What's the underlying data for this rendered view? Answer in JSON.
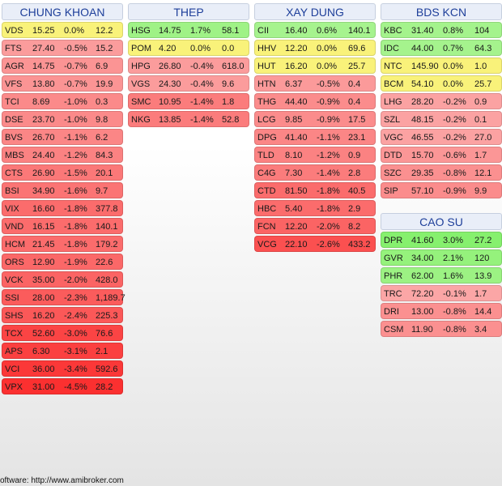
{
  "columns": [
    {
      "title": "CHUNG KHOAN",
      "rows": [
        {
          "sym": "VDS",
          "price": "15.25",
          "chg": "0.0%",
          "vol": "12.2",
          "color": "#f9f27a"
        },
        {
          "sym": "FTS",
          "price": "27.40",
          "chg": "-0.5%",
          "vol": "15.2",
          "color": "#fb9c9c"
        },
        {
          "sym": "AGR",
          "price": "14.75",
          "chg": "-0.7%",
          "vol": "6.9",
          "color": "#fb9494"
        },
        {
          "sym": "VFS",
          "price": "13.80",
          "chg": "-0.7%",
          "vol": "19.9",
          "color": "#fb9494"
        },
        {
          "sym": "TCI",
          "price": "8.69",
          "chg": "-1.0%",
          "vol": "0.3",
          "color": "#fb8a8a"
        },
        {
          "sym": "DSE",
          "price": "23.70",
          "chg": "-1.0%",
          "vol": "9.8",
          "color": "#fb8a8a"
        },
        {
          "sym": "BVS",
          "price": "26.70",
          "chg": "-1.1%",
          "vol": "6.2",
          "color": "#fb8686"
        },
        {
          "sym": "MBS",
          "price": "24.40",
          "chg": "-1.2%",
          "vol": "84.3",
          "color": "#fb8282"
        },
        {
          "sym": "CTS",
          "price": "26.90",
          "chg": "-1.5%",
          "vol": "20.1",
          "color": "#fb7878"
        },
        {
          "sym": "BSI",
          "price": "34.90",
          "chg": "-1.6%",
          "vol": "9.7",
          "color": "#fb7474"
        },
        {
          "sym": "VIX",
          "price": "16.60",
          "chg": "-1.8%",
          "vol": "377.8",
          "color": "#fb6c6c"
        },
        {
          "sym": "VND",
          "price": "16.15",
          "chg": "-1.8%",
          "vol": "140.1",
          "color": "#fb6c6c"
        },
        {
          "sym": "HCM",
          "price": "21.45",
          "chg": "-1.8%",
          "vol": "179.2",
          "color": "#fb6c6c"
        },
        {
          "sym": "ORS",
          "price": "12.90",
          "chg": "-1.9%",
          "vol": "22.6",
          "color": "#fb6868"
        },
        {
          "sym": "VCK",
          "price": "35.00",
          "chg": "-2.0%",
          "vol": "428.0",
          "color": "#fb6464"
        },
        {
          "sym": "SSI",
          "price": "28.00",
          "chg": "-2.3%",
          "vol": "1,189.7",
          "color": "#fb5c5c"
        },
        {
          "sym": "SHS",
          "price": "16.20",
          "chg": "-2.4%",
          "vol": "225.3",
          "color": "#fb5858"
        },
        {
          "sym": "TCX",
          "price": "52.60",
          "chg": "-3.0%",
          "vol": "76.6",
          "color": "#fb4444"
        },
        {
          "sym": "APS",
          "price": "6.30",
          "chg": "-3.1%",
          "vol": "2.1",
          "color": "#fb4040"
        },
        {
          "sym": "VCI",
          "price": "36.00",
          "chg": "-3.4%",
          "vol": "592.6",
          "color": "#fb3838"
        },
        {
          "sym": "VPX",
          "price": "31.00",
          "chg": "-4.5%",
          "vol": "28.2",
          "color": "#fb3030"
        }
      ]
    },
    {
      "title": "THEP",
      "rows": [
        {
          "sym": "HSG",
          "price": "14.75",
          "chg": "1.7%",
          "vol": "58.1",
          "color": "#9ff286"
        },
        {
          "sym": "POM",
          "price": "4.20",
          "chg": "0.0%",
          "vol": "0.0",
          "color": "#f9f27a"
        },
        {
          "sym": "HPG",
          "price": "26.80",
          "chg": "-0.4%",
          "vol": "618.0",
          "color": "#fb9c9c"
        },
        {
          "sym": "VGS",
          "price": "24.30",
          "chg": "-0.4%",
          "vol": "9.6",
          "color": "#fb9c9c"
        },
        {
          "sym": "SMC",
          "price": "10.95",
          "chg": "-1.4%",
          "vol": "1.8",
          "color": "#fb7c7c"
        },
        {
          "sym": "NKG",
          "price": "13.85",
          "chg": "-1.4%",
          "vol": "52.8",
          "color": "#fb7c7c"
        }
      ]
    },
    {
      "title": "XAY DUNG",
      "rows": [
        {
          "sym": "CII",
          "price": "16.40",
          "chg": "0.6%",
          "vol": "140.1",
          "color": "#a6f38e"
        },
        {
          "sym": "HHV",
          "price": "12.20",
          "chg": "0.0%",
          "vol": "69.6",
          "color": "#f9f27a"
        },
        {
          "sym": "HUT",
          "price": "16.20",
          "chg": "0.0%",
          "vol": "25.7",
          "color": "#f9f27a"
        },
        {
          "sym": "HTN",
          "price": "6.37",
          "chg": "-0.5%",
          "vol": "0.4",
          "color": "#fb9a9a"
        },
        {
          "sym": "THG",
          "price": "44.40",
          "chg": "-0.9%",
          "vol": "0.4",
          "color": "#fb8c8c"
        },
        {
          "sym": "LCG",
          "price": "9.85",
          "chg": "-0.9%",
          "vol": "17.5",
          "color": "#fb8c8c"
        },
        {
          "sym": "DPG",
          "price": "41.40",
          "chg": "-1.1%",
          "vol": "23.1",
          "color": "#fb8686"
        },
        {
          "sym": "TLD",
          "price": "8.10",
          "chg": "-1.2%",
          "vol": "0.9",
          "color": "#fb8282"
        },
        {
          "sym": "C4G",
          "price": "7.30",
          "chg": "-1.4%",
          "vol": "2.8",
          "color": "#fb7c7c"
        },
        {
          "sym": "CTD",
          "price": "81.50",
          "chg": "-1.8%",
          "vol": "40.5",
          "color": "#fb6c6c"
        },
        {
          "sym": "HBC",
          "price": "5.40",
          "chg": "-1.8%",
          "vol": "2.9",
          "color": "#fb6c6c"
        },
        {
          "sym": "FCN",
          "price": "12.20",
          "chg": "-2.0%",
          "vol": "8.2",
          "color": "#fb6464"
        },
        {
          "sym": "VCG",
          "price": "22.10",
          "chg": "-2.6%",
          "vol": "433.2",
          "color": "#fb5050"
        }
      ]
    },
    {
      "title": "BDS KCN",
      "rows": [
        {
          "sym": "KBC",
          "price": "31.40",
          "chg": "0.8%",
          "vol": "104",
          "color": "#a4f38c"
        },
        {
          "sym": "IDC",
          "price": "44.00",
          "chg": "0.7%",
          "vol": "64.3",
          "color": "#a5f38d"
        },
        {
          "sym": "NTC",
          "price": "145.90",
          "chg": "0.0%",
          "vol": "1.0",
          "color": "#f9f27a"
        },
        {
          "sym": "BCM",
          "price": "54.10",
          "chg": "0.0%",
          "vol": "25.7",
          "color": "#f9f27a"
        },
        {
          "sym": "LHG",
          "price": "28.20",
          "chg": "-0.2%",
          "vol": "0.9",
          "color": "#fba2a2"
        },
        {
          "sym": "SZL",
          "price": "48.15",
          "chg": "-0.2%",
          "vol": "0.1",
          "color": "#fba2a2"
        },
        {
          "sym": "VGC",
          "price": "46.55",
          "chg": "-0.2%",
          "vol": "27.0",
          "color": "#fba2a2"
        },
        {
          "sym": "DTD",
          "price": "15.70",
          "chg": "-0.6%",
          "vol": "1.7",
          "color": "#fb9696"
        },
        {
          "sym": "SZC",
          "price": "29.35",
          "chg": "-0.8%",
          "vol": "12.1",
          "color": "#fb9090"
        },
        {
          "sym": "SIP",
          "price": "57.10",
          "chg": "-0.9%",
          "vol": "9.9",
          "color": "#fb8c8c"
        }
      ]
    },
    {
      "title": "CAO SU",
      "rows": [
        {
          "sym": "DPR",
          "price": "41.60",
          "chg": "3.0%",
          "vol": "27.2",
          "color": "#86f06e"
        },
        {
          "sym": "GVR",
          "price": "34.00",
          "chg": "2.1%",
          "vol": "120",
          "color": "#95f27c"
        },
        {
          "sym": "PHR",
          "price": "62.00",
          "chg": "1.6%",
          "vol": "13.9",
          "color": "#9cf283"
        },
        {
          "sym": "TRC",
          "price": "72.20",
          "chg": "-0.1%",
          "vol": "1.7",
          "color": "#fba6a6"
        },
        {
          "sym": "DRI",
          "price": "13.00",
          "chg": "-0.8%",
          "vol": "14.4",
          "color": "#fb9090"
        },
        {
          "sym": "CSM",
          "price": "11.90",
          "chg": "-0.8%",
          "vol": "3.4",
          "color": "#fb9090"
        }
      ]
    }
  ],
  "footer": "oftware: http://www.amibroker.com"
}
